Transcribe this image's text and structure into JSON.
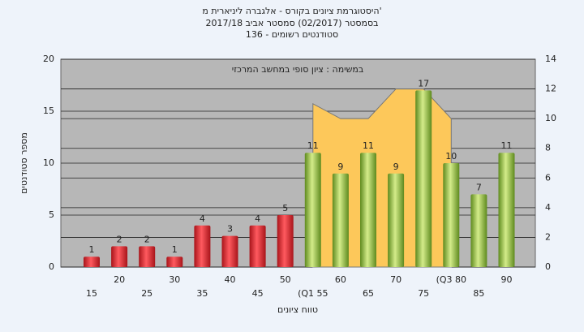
{
  "chart_data": {
    "type": "bar",
    "title": "היסטוגרמת ציונים בקורס - אלגברה ליניארית מ'",
    "subtitle": [
      "בסמסטר (02/2017) סמסטר אביב 2017/18",
      "סטודנטים רשומים - 136"
    ],
    "annotation": "במשימה : ציון סופי במחשב המרכזי",
    "x_label": "טווח ציונים",
    "y_label": "מספר סטודנטים",
    "categories": [
      "15",
      "20",
      "25",
      "30",
      "35",
      "40",
      "45",
      "50",
      "(Q1 55",
      "60",
      "65",
      "70",
      "75",
      "(Q3 80",
      "85",
      "90"
    ],
    "series": [
      {
        "color": "#e8232a",
        "values": [
          1,
          2,
          2,
          1,
          4,
          3,
          4,
          5,
          null,
          null,
          null,
          null,
          null,
          null,
          null,
          null
        ]
      },
      {
        "color": "#8dc03f",
        "values": [
          null,
          null,
          null,
          null,
          null,
          null,
          null,
          null,
          11,
          9,
          11,
          9,
          17,
          10,
          7,
          11
        ]
      },
      {
        "type": "area",
        "axis": "y2",
        "color": "#fdc85a",
        "values": [
          null,
          null,
          null,
          null,
          null,
          null,
          null,
          null,
          11,
          10,
          10,
          12,
          12,
          10,
          null,
          null
        ]
      }
    ],
    "ylim": [
      0,
      20
    ],
    "yticks": [
      0,
      5,
      10,
      15,
      20
    ],
    "y2lim": [
      0,
      14
    ],
    "y2ticks": [
      0,
      2,
      4,
      6,
      8,
      10,
      12,
      14
    ],
    "grid": true
  }
}
